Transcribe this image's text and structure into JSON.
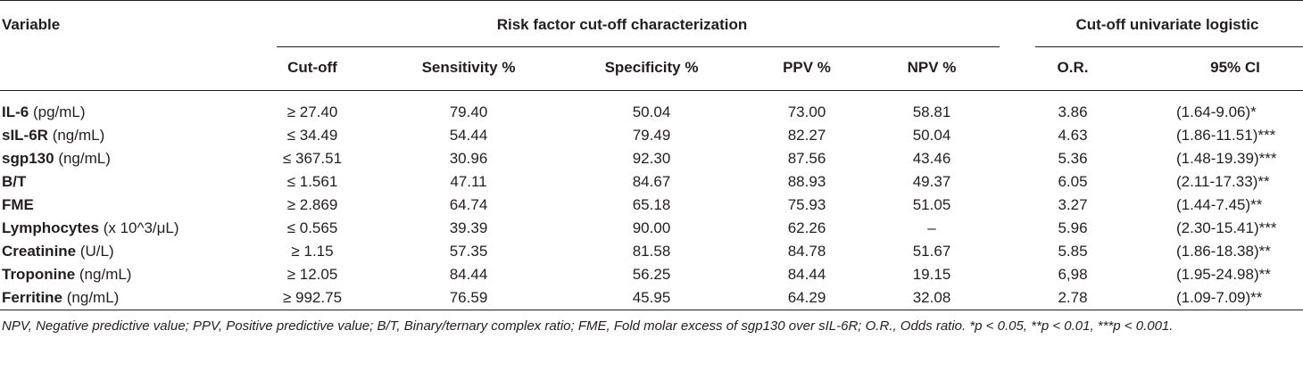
{
  "header": {
    "variable": "Variable",
    "group_risk": "Risk factor cut-off characterization",
    "group_logistic": "Cut-off univariate logistic",
    "columns": [
      "Cut-off",
      "Sensitivity %",
      "Specificity %",
      "PPV %",
      "NPV %",
      "O.R.",
      "95% CI"
    ]
  },
  "rows": [
    {
      "name": "IL-6",
      "unit": " (pg/mL)",
      "cutoff": "≥ 27.40",
      "sens": "79.40",
      "spec": "50.04",
      "ppv": "73.00",
      "npv": "58.81",
      "or": "3.86",
      "ci": "(1.64-9.06)*"
    },
    {
      "name": "sIL-6R",
      "unit": " (ng/mL)",
      "cutoff": "≤ 34.49",
      "sens": "54.44",
      "spec": "79.49",
      "ppv": "82.27",
      "npv": "50.04",
      "or": "4.63",
      "ci": "(1.86-11.51)***"
    },
    {
      "name": "sgp130",
      "unit": " (ng/mL)",
      "cutoff": "≤ 367.51",
      "sens": "30.96",
      "spec": "92.30",
      "ppv": "87.56",
      "npv": "43.46",
      "or": "5.36",
      "ci": "(1.48-19.39)***"
    },
    {
      "name": "B/T",
      "unit": "",
      "cutoff": "≤ 1.561",
      "sens": "47.11",
      "spec": "84.67",
      "ppv": "88.93",
      "npv": "49.37",
      "or": "6.05",
      "ci": "(2.11-17.33)**"
    },
    {
      "name": "FME",
      "unit": "",
      "cutoff": "≥ 2.869",
      "sens": "64.74",
      "spec": "65.18",
      "ppv": "75.93",
      "npv": "51.05",
      "or": "3.27",
      "ci": "(1.44-7.45)**"
    },
    {
      "name": "Lymphocytes",
      "unit": " (x 10^3/μL)",
      "cutoff": "≤ 0.565",
      "sens": "39.39",
      "spec": "90.00",
      "ppv": "62.26",
      "npv": "–",
      "or": "5.96",
      "ci": "(2.30-15.41)***"
    },
    {
      "name": "Creatinine",
      "unit": " (U/L)",
      "cutoff": "≥ 1.15",
      "sens": "57.35",
      "spec": "81.58",
      "ppv": "84.78",
      "npv": "51.67",
      "or": "5.85",
      "ci": "(1.86-18.38)**"
    },
    {
      "name": "Troponine",
      "unit": " (ng/mL)",
      "cutoff": "≥ 12.05",
      "sens": "84.44",
      "spec": "56.25",
      "ppv": "84.44",
      "npv": "19.15",
      "or": "6,98",
      "ci": "(1.95-24.98)**"
    },
    {
      "name": "Ferritine",
      "unit": " (ng/mL)",
      "cutoff": "≥ 992.75",
      "sens": "76.59",
      "spec": "45.95",
      "ppv": "64.29",
      "npv": "32.08",
      "or": "2.78",
      "ci": "(1.09-7.09)**"
    }
  ],
  "footnote": "NPV, Negative predictive value; PPV, Positive predictive value; B/T, Binary/ternary complex ratio; FME, Fold molar excess of sgp130 over sIL-6R; O.R., Odds ratio. *p < 0.05, **p < 0.01, ***p < 0.001."
}
